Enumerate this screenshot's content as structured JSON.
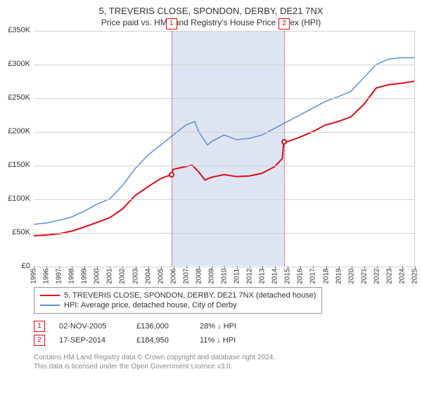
{
  "title": "5, TREVERIS CLOSE, SPONDON, DERBY, DE21 7NX",
  "subtitle": "Price paid vs. HM Land Registry's House Price Index (HPI)",
  "chart": {
    "type": "line",
    "background_color": "#ffffff",
    "grid_color": "#d0d0d0",
    "ylim": [
      0,
      350000
    ],
    "ytick_step": 50000,
    "yticks": [
      "£0",
      "£50K",
      "£100K",
      "£150K",
      "£200K",
      "£250K",
      "£300K",
      "£350K"
    ],
    "xlim": [
      1995,
      2025
    ],
    "xticks": [
      1995,
      1996,
      1997,
      1998,
      1999,
      2000,
      2001,
      2002,
      2003,
      2004,
      2005,
      2006,
      2007,
      2008,
      2009,
      2010,
      2011,
      2012,
      2013,
      2014,
      2015,
      2016,
      2017,
      2018,
      2019,
      2020,
      2021,
      2022,
      2023,
      2024,
      2025
    ],
    "band": {
      "from": 2005.84,
      "to": 2014.71,
      "color": "#dde5f2"
    },
    "markers": [
      {
        "id": "1",
        "x": 2005.84,
        "y": 136000
      },
      {
        "id": "2",
        "x": 2014.71,
        "y": 184950
      }
    ],
    "vline_color": "#e30613",
    "series": [
      {
        "name": "price",
        "color": "#e30613",
        "width": 2,
        "points": [
          [
            1995,
            45000
          ],
          [
            1996,
            46000
          ],
          [
            1997,
            48000
          ],
          [
            1998,
            52000
          ],
          [
            1999,
            58000
          ],
          [
            2000,
            65000
          ],
          [
            2001,
            72000
          ],
          [
            2002,
            85000
          ],
          [
            2003,
            105000
          ],
          [
            2004,
            118000
          ],
          [
            2005,
            130000
          ],
          [
            2005.84,
            136000
          ],
          [
            2006,
            144000
          ],
          [
            2007,
            148000
          ],
          [
            2007.5,
            150000
          ],
          [
            2008,
            140000
          ],
          [
            2008.5,
            128000
          ],
          [
            2009,
            132000
          ],
          [
            2010,
            136000
          ],
          [
            2011,
            133000
          ],
          [
            2012,
            134000
          ],
          [
            2013,
            138000
          ],
          [
            2014,
            148000
          ],
          [
            2014.6,
            160000
          ],
          [
            2014.71,
            184950
          ],
          [
            2015,
            185000
          ],
          [
            2016,
            192000
          ],
          [
            2017,
            200000
          ],
          [
            2018,
            210000
          ],
          [
            2019,
            215000
          ],
          [
            2020,
            222000
          ],
          [
            2021,
            240000
          ],
          [
            2022,
            265000
          ],
          [
            2023,
            270000
          ],
          [
            2024,
            272000
          ],
          [
            2025,
            275000
          ]
        ]
      },
      {
        "name": "hpi",
        "color": "#5b8fd6",
        "width": 1.5,
        "points": [
          [
            1995,
            62000
          ],
          [
            1996,
            64000
          ],
          [
            1997,
            68000
          ],
          [
            1998,
            73000
          ],
          [
            1999,
            82000
          ],
          [
            2000,
            92000
          ],
          [
            2001,
            100000
          ],
          [
            2002,
            120000
          ],
          [
            2003,
            145000
          ],
          [
            2004,
            165000
          ],
          [
            2005,
            180000
          ],
          [
            2006,
            195000
          ],
          [
            2007,
            210000
          ],
          [
            2007.7,
            215000
          ],
          [
            2008,
            200000
          ],
          [
            2008.7,
            180000
          ],
          [
            2009,
            185000
          ],
          [
            2010,
            195000
          ],
          [
            2011,
            188000
          ],
          [
            2012,
            190000
          ],
          [
            2013,
            195000
          ],
          [
            2014,
            205000
          ],
          [
            2015,
            215000
          ],
          [
            2016,
            225000
          ],
          [
            2017,
            235000
          ],
          [
            2018,
            245000
          ],
          [
            2019,
            252000
          ],
          [
            2020,
            260000
          ],
          [
            2021,
            280000
          ],
          [
            2022,
            300000
          ],
          [
            2023,
            308000
          ],
          [
            2024,
            310000
          ],
          [
            2025,
            310000
          ]
        ]
      }
    ]
  },
  "legend": {
    "series1": {
      "color": "#e30613",
      "label": "5, TREVERIS CLOSE, SPONDON, DERBY, DE21 7NX (detached house)"
    },
    "series2": {
      "color": "#5b8fd6",
      "label": "HPI: Average price, detached house, City of Derby"
    }
  },
  "sales": [
    {
      "id": "1",
      "date": "02-NOV-2005",
      "price": "£136,000",
      "hpi": "28% ↓ HPI"
    },
    {
      "id": "2",
      "date": "17-SEP-2014",
      "price": "£184,950",
      "hpi": "11% ↓ HPI"
    }
  ],
  "footer": {
    "line1": "Contains HM Land Registry data © Crown copyright and database right 2024.",
    "line2": "This data is licensed under the Open Government Licence v3.0."
  }
}
